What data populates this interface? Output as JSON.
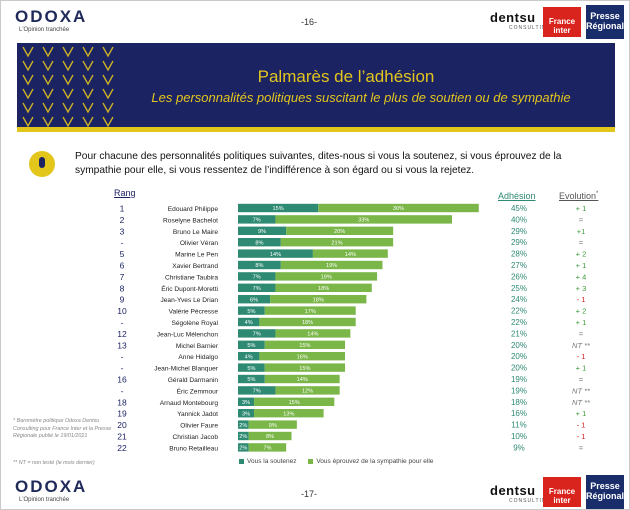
{
  "header": {
    "brand": "ODOXA",
    "tagline": "L'Opinion tranchée",
    "page": "-16-",
    "partner_1": "dentsu",
    "partner_1_sub": "CONSULTING",
    "partner_2": "France inter",
    "partner_3": "Presse Régionale"
  },
  "banner": {
    "title": "Palmarès de l’adhésion",
    "subtitle": "Les personnalités politiques suscitant le plus de soutien ou de sympathie"
  },
  "question": "Pour chacune des personnalités politiques suivantes, dites-nous si vous la soutenez, si vous éprouvez de la sympathie pour elle, si vous ressentez de l’indifférence à son égard ou si vous la rejetez.",
  "columns": {
    "rank": "Rang",
    "adhesion": "Adhésion",
    "evolution": "Evolution",
    "evolution_mark": "*"
  },
  "source_note": "* Baromètre politique Odoxa Dentsu Consulting pour France Inter et la Presse Régionale publié le 19/01/2021",
  "nt_note": "** NT = non testé (le mois dernier)",
  "footer": {
    "brand": "ODOXA",
    "tagline": "L'Opinion tranchée",
    "page": "-17-",
    "partner_1": "dentsu",
    "partner_1_sub": "CONSULTING",
    "partner_2": "France inter",
    "partner_3": "Presse Régionale"
  },
  "colors": {
    "soutien": "#2e8a73",
    "sympathie": "#7ab648",
    "banner": "#1c2363",
    "accent": "#e3c61c",
    "up": "#3c9a3c",
    "down": "#d22020",
    "neutral": "#777777"
  },
  "chart_data": {
    "type": "bar",
    "orientation": "horizontal",
    "stacked": true,
    "series": [
      {
        "name": "Vous la soutenez",
        "color": "#2e8a73",
        "values": [
          15,
          7,
          9,
          8,
          14,
          8,
          7,
          7,
          6,
          5,
          4,
          7,
          5,
          4,
          5,
          5,
          7,
          3,
          3,
          2,
          2,
          2
        ]
      },
      {
        "name": "Vous éprouvez de la sympathie pour elle",
        "color": "#7ab648",
        "values": [
          30,
          33,
          20,
          21,
          14,
          19,
          19,
          18,
          18,
          17,
          18,
          14,
          15,
          16,
          15,
          14,
          12,
          15,
          13,
          9,
          8,
          7
        ]
      }
    ],
    "rows": [
      {
        "rank": "1",
        "name": "Edouard Philippe",
        "adhesion": "45%",
        "evolution": "+ 1",
        "trend": "up"
      },
      {
        "rank": "2",
        "name": "Roselyne Bachelot",
        "adhesion": "40%",
        "evolution": "=",
        "trend": "same"
      },
      {
        "rank": "3",
        "name": "Bruno Le Maire",
        "adhesion": "29%",
        "evolution": "+1",
        "trend": "up"
      },
      {
        "rank": "-",
        "name": "Olivier Véran",
        "adhesion": "29%",
        "evolution": "=",
        "trend": "same"
      },
      {
        "rank": "5",
        "name": "Marine Le Pen",
        "adhesion": "28%",
        "evolution": "+ 2",
        "trend": "up"
      },
      {
        "rank": "6",
        "name": "Xavier Bertrand",
        "adhesion": "27%",
        "evolution": "+ 1",
        "trend": "up"
      },
      {
        "rank": "7",
        "name": "Christiane Taubira",
        "adhesion": "26%",
        "evolution": "+ 4",
        "trend": "up"
      },
      {
        "rank": "8",
        "name": "Éric Dupont-Moretti",
        "adhesion": "25%",
        "evolution": "+ 3",
        "trend": "up"
      },
      {
        "rank": "9",
        "name": "Jean-Yves Le Drian",
        "adhesion": "24%",
        "evolution": "- 1",
        "trend": "down"
      },
      {
        "rank": "10",
        "name": "Valérie Pécresse",
        "adhesion": "22%",
        "evolution": "+ 2",
        "trend": "up"
      },
      {
        "rank": "-",
        "name": "Ségolène Royal",
        "adhesion": "22%",
        "evolution": "+ 1",
        "trend": "up"
      },
      {
        "rank": "12",
        "name": "Jean-Luc Mélenchon",
        "adhesion": "21%",
        "evolution": "=",
        "trend": "same"
      },
      {
        "rank": "13",
        "name": "Michel Barnier",
        "adhesion": "20%",
        "evolution": "NT **",
        "trend": "nt"
      },
      {
        "rank": "-",
        "name": "Anne Hidalgo",
        "adhesion": "20%",
        "evolution": "- 1",
        "trend": "down"
      },
      {
        "rank": "-",
        "name": "Jean-Michel Blanquer",
        "adhesion": "20%",
        "evolution": "+ 1",
        "trend": "up"
      },
      {
        "rank": "16",
        "name": "Gérald Darmanin",
        "adhesion": "19%",
        "evolution": "=",
        "trend": "same"
      },
      {
        "rank": "-",
        "name": "Éric Zemmour",
        "adhesion": "19%",
        "evolution": "NT **",
        "trend": "nt"
      },
      {
        "rank": "18",
        "name": "Arnaud Montebourg",
        "adhesion": "18%",
        "evolution": "NT **",
        "trend": "nt"
      },
      {
        "rank": "19",
        "name": "Yannick Jadot",
        "adhesion": "16%",
        "evolution": "+ 1",
        "trend": "up"
      },
      {
        "rank": "20",
        "name": "Olivier Faure",
        "adhesion": "11%",
        "evolution": "- 1",
        "trend": "down"
      },
      {
        "rank": "21",
        "name": "Christian Jacob",
        "adhesion": "10%",
        "evolution": "- 1",
        "trend": "down"
      },
      {
        "rank": "22",
        "name": "Bruno Retailleau",
        "adhesion": "9%",
        "evolution": "=",
        "trend": "same"
      }
    ],
    "legend_position": "bottom",
    "grid": false
  }
}
